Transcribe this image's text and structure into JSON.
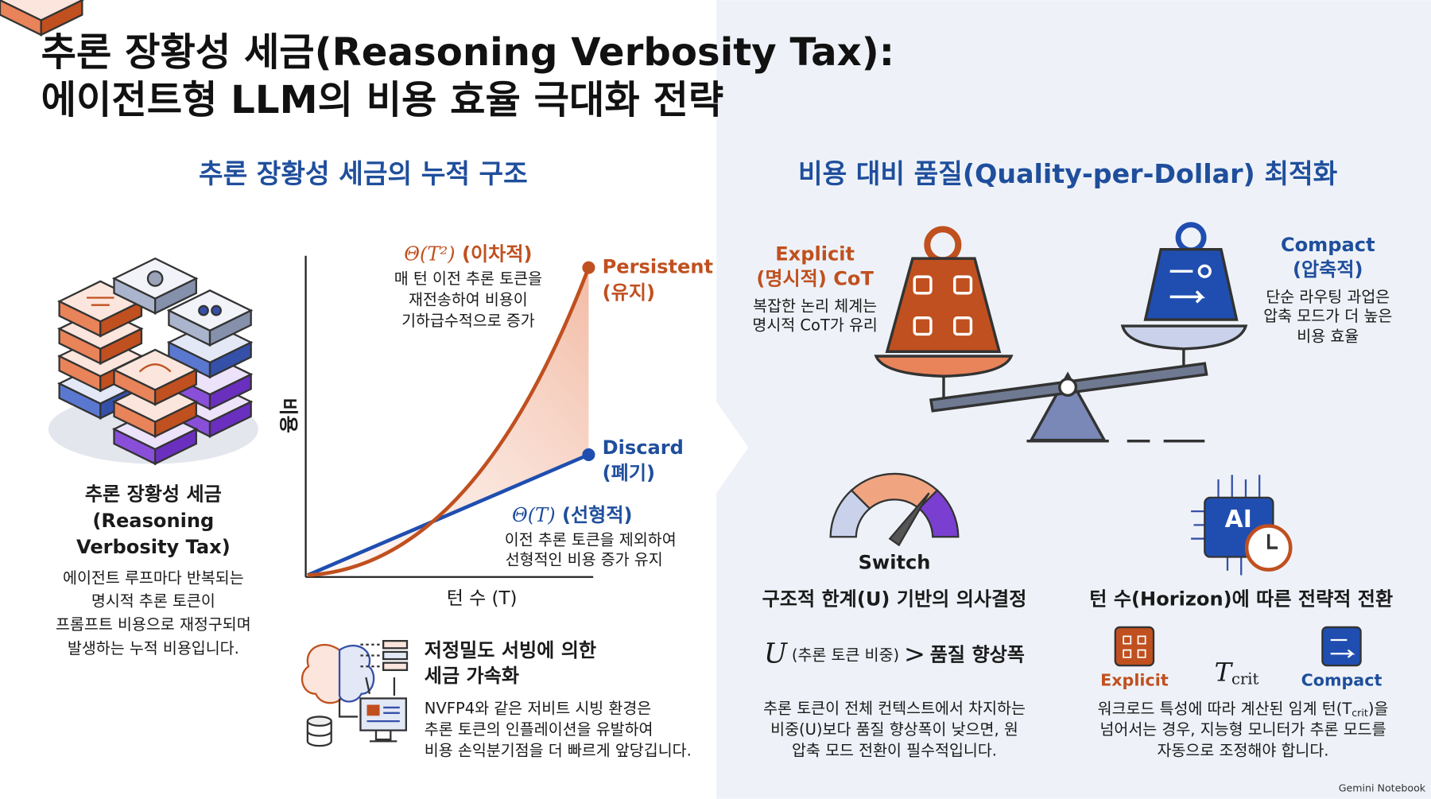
{
  "header": {
    "title_line1": "추론 장황성 세금(Reasoning Verbosity Tax):",
    "title_line2": "에이전트형 LLM의 비용 효율 극대화 전략"
  },
  "left": {
    "heading": "추론 장황성 세금의 누적 구조",
    "concept": {
      "title": [
        "추론 장황성 세금",
        "(Reasoning",
        "Verbosity Tax)"
      ],
      "body": [
        "에이전트 루프마다 반복되는",
        "명시적 추론 토큰이",
        "프롬프트 비용으로 재정구되며",
        "발생하는 누적 비용입니다."
      ]
    },
    "graph": {
      "y_label": "비용",
      "x_label": "턴 수 (T)",
      "quadratic": {
        "formula": "Θ(T²)",
        "tag": "(이차적)",
        "desc": [
          "매 턴 이전 추론 토큰을",
          "재전송하여 비용이",
          "기하급수적으로 증가"
        ]
      },
      "linear": {
        "formula": "Θ(T)",
        "tag": "(선형적)",
        "desc": [
          "이전 추론 토큰을 제외하여",
          "선형적인 비용 증가 유지"
        ]
      },
      "persistent": [
        "Persistent",
        "(유지)"
      ],
      "discard": [
        "Discard",
        "(폐기)"
      ]
    },
    "serving": {
      "title": [
        "저정밀도 서빙에 의한",
        "세금 가속화"
      ],
      "body": [
        "NVFP4와 같은 저비트 시빙 환경은",
        "추론 토큰의 인플레이션을 유발하여",
        "비용 손익분기점을 더 빠르게 앞당깁니다."
      ]
    }
  },
  "right": {
    "heading": "비용 대비 품질(Quality-per-Dollar) 최적화",
    "explicit": {
      "title": [
        "Explicit",
        "(명시적) CoT"
      ],
      "desc": [
        "복잡한 논리 체계는",
        "명시적 CoT가 유리"
      ]
    },
    "compact": {
      "title": [
        "Compact",
        "(압축적)"
      ],
      "desc": [
        "단순 라우팅 과업은",
        "압축 모드가 더 높은",
        "비용 효율"
      ]
    },
    "switch": {
      "label": "Switch",
      "title": "구조적 한계(U) 기반의 의사결정",
      "rule": {
        "symbol": "U",
        "note": "(추론 토큰 비중)",
        "op": ">",
        "rhs": "품질 향상폭"
      },
      "desc": [
        "추론 토큰이 전체 컨텍스트에서 차지하는",
        "비중(U)보다 품질 향상폭이 낮으면, 원",
        "압축 모드 전환이 필수적입니다."
      ]
    },
    "horizon": {
      "chip": "AI",
      "title": "턴 수(Horizon)에 따른 전략적 전환",
      "explicit_label": "Explicit",
      "compact_label": "Compact",
      "tcrit": {
        "symbol": "T",
        "sub": "crit"
      },
      "desc_line1": [
        "워크로드 특성에 따라 계산된 임계 턴(T",
        "crit",
        ")을"
      ],
      "desc": [
        "넘어서는 경우, 지능형 모니터가 추론 모드를",
        "자동으로 조정해야 합니다."
      ]
    }
  },
  "footer": {
    "brand": "Gemini Notebook"
  }
}
